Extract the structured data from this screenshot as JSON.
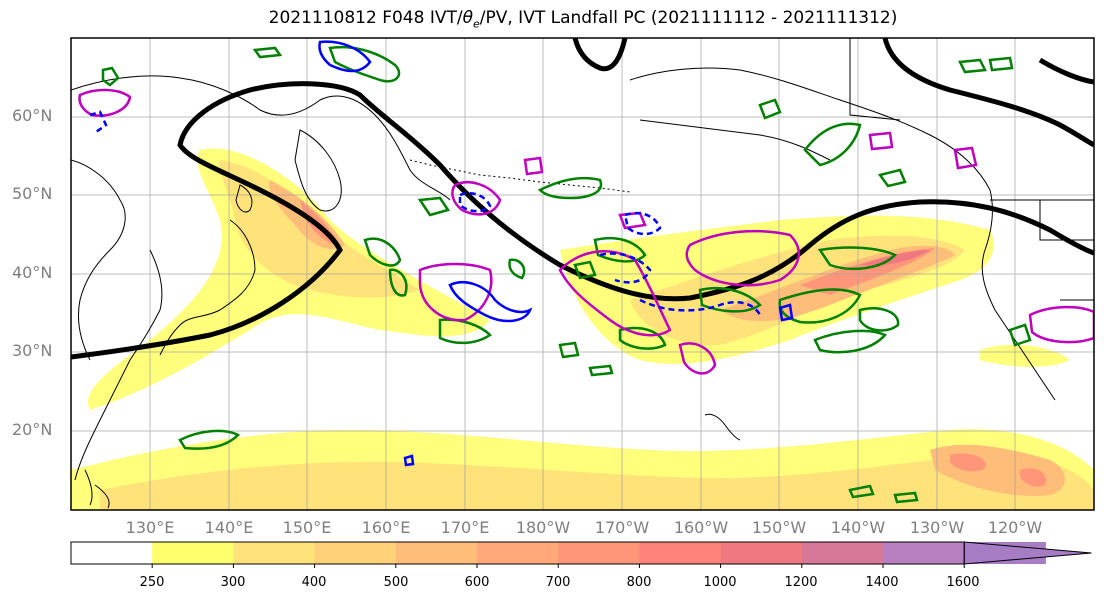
{
  "title": {
    "prefix": "2021110812 F048 IVT/",
    "theta": "θ",
    "theta_sub": "e",
    "suffix": "/PV, IVT Landfall PC (2021111112 - 2021111312)"
  },
  "map": {
    "lat_labels": [
      "60°N",
      "50°N",
      "40°N",
      "30°N",
      "20°N"
    ],
    "lon_labels": [
      "130°E",
      "140°E",
      "150°E",
      "160°E",
      "170°E",
      "180°W",
      "170°W",
      "160°W",
      "150°W",
      "140°W",
      "130°W",
      "120°W"
    ],
    "lat_range": [
      10,
      70
    ],
    "lon_range": [
      120,
      250
    ],
    "layers": {
      "ivt_fill": "IVT shading",
      "theta_contour_color": "#000000",
      "green_contour_color": "#008000",
      "magenta_contour_color": "#bf00bf",
      "blue_contour_color": "#0000ff"
    }
  },
  "colorbar": {
    "ticks": [
      "250",
      "300",
      "400",
      "500",
      "600",
      "700",
      "800",
      "1000",
      "1200",
      "1400",
      "1600"
    ],
    "colors": [
      "#ffffff",
      "#ffff6e",
      "#ffe27a",
      "#ffd27a",
      "#ffbd7a",
      "#ffa97a",
      "#ff967a",
      "#ff837a",
      "#f07880",
      "#d87898",
      "#b880c0",
      "#a67cc4"
    ]
  }
}
